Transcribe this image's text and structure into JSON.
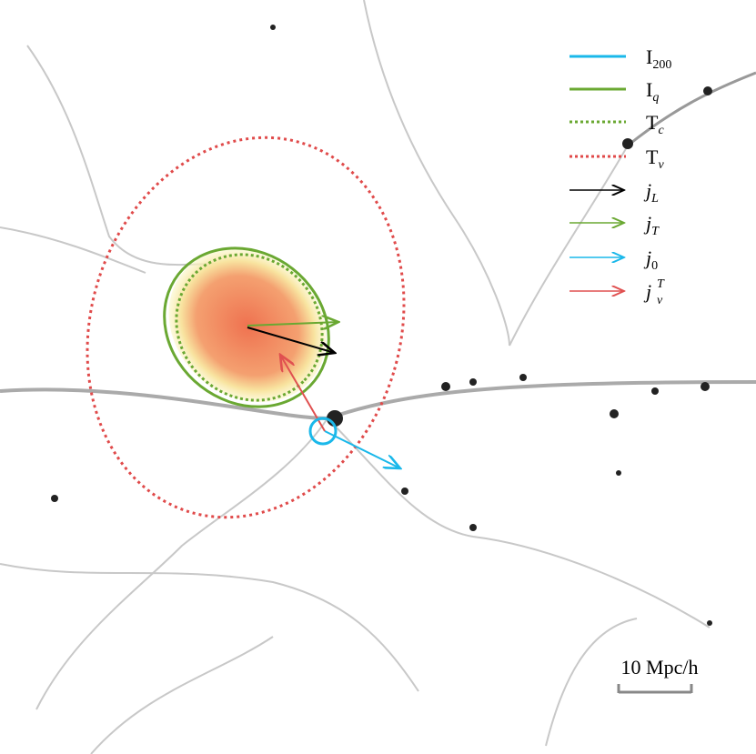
{
  "legend": {
    "items": [
      {
        "symbol": "I",
        "sub": "200"
      },
      {
        "symbol": "I",
        "sub": "q"
      },
      {
        "symbol": "T",
        "sub": "c"
      },
      {
        "symbol": "T",
        "sub": "ν"
      },
      {
        "symbol": "j",
        "sub": "L"
      },
      {
        "symbol": "j",
        "sub": "T"
      },
      {
        "symbol": "j",
        "sub": "0"
      },
      {
        "symbol": "j",
        "sub": "ν",
        "sup": "T"
      }
    ]
  },
  "scale_bar": {
    "label": "10 Mpc/h"
  }
}
